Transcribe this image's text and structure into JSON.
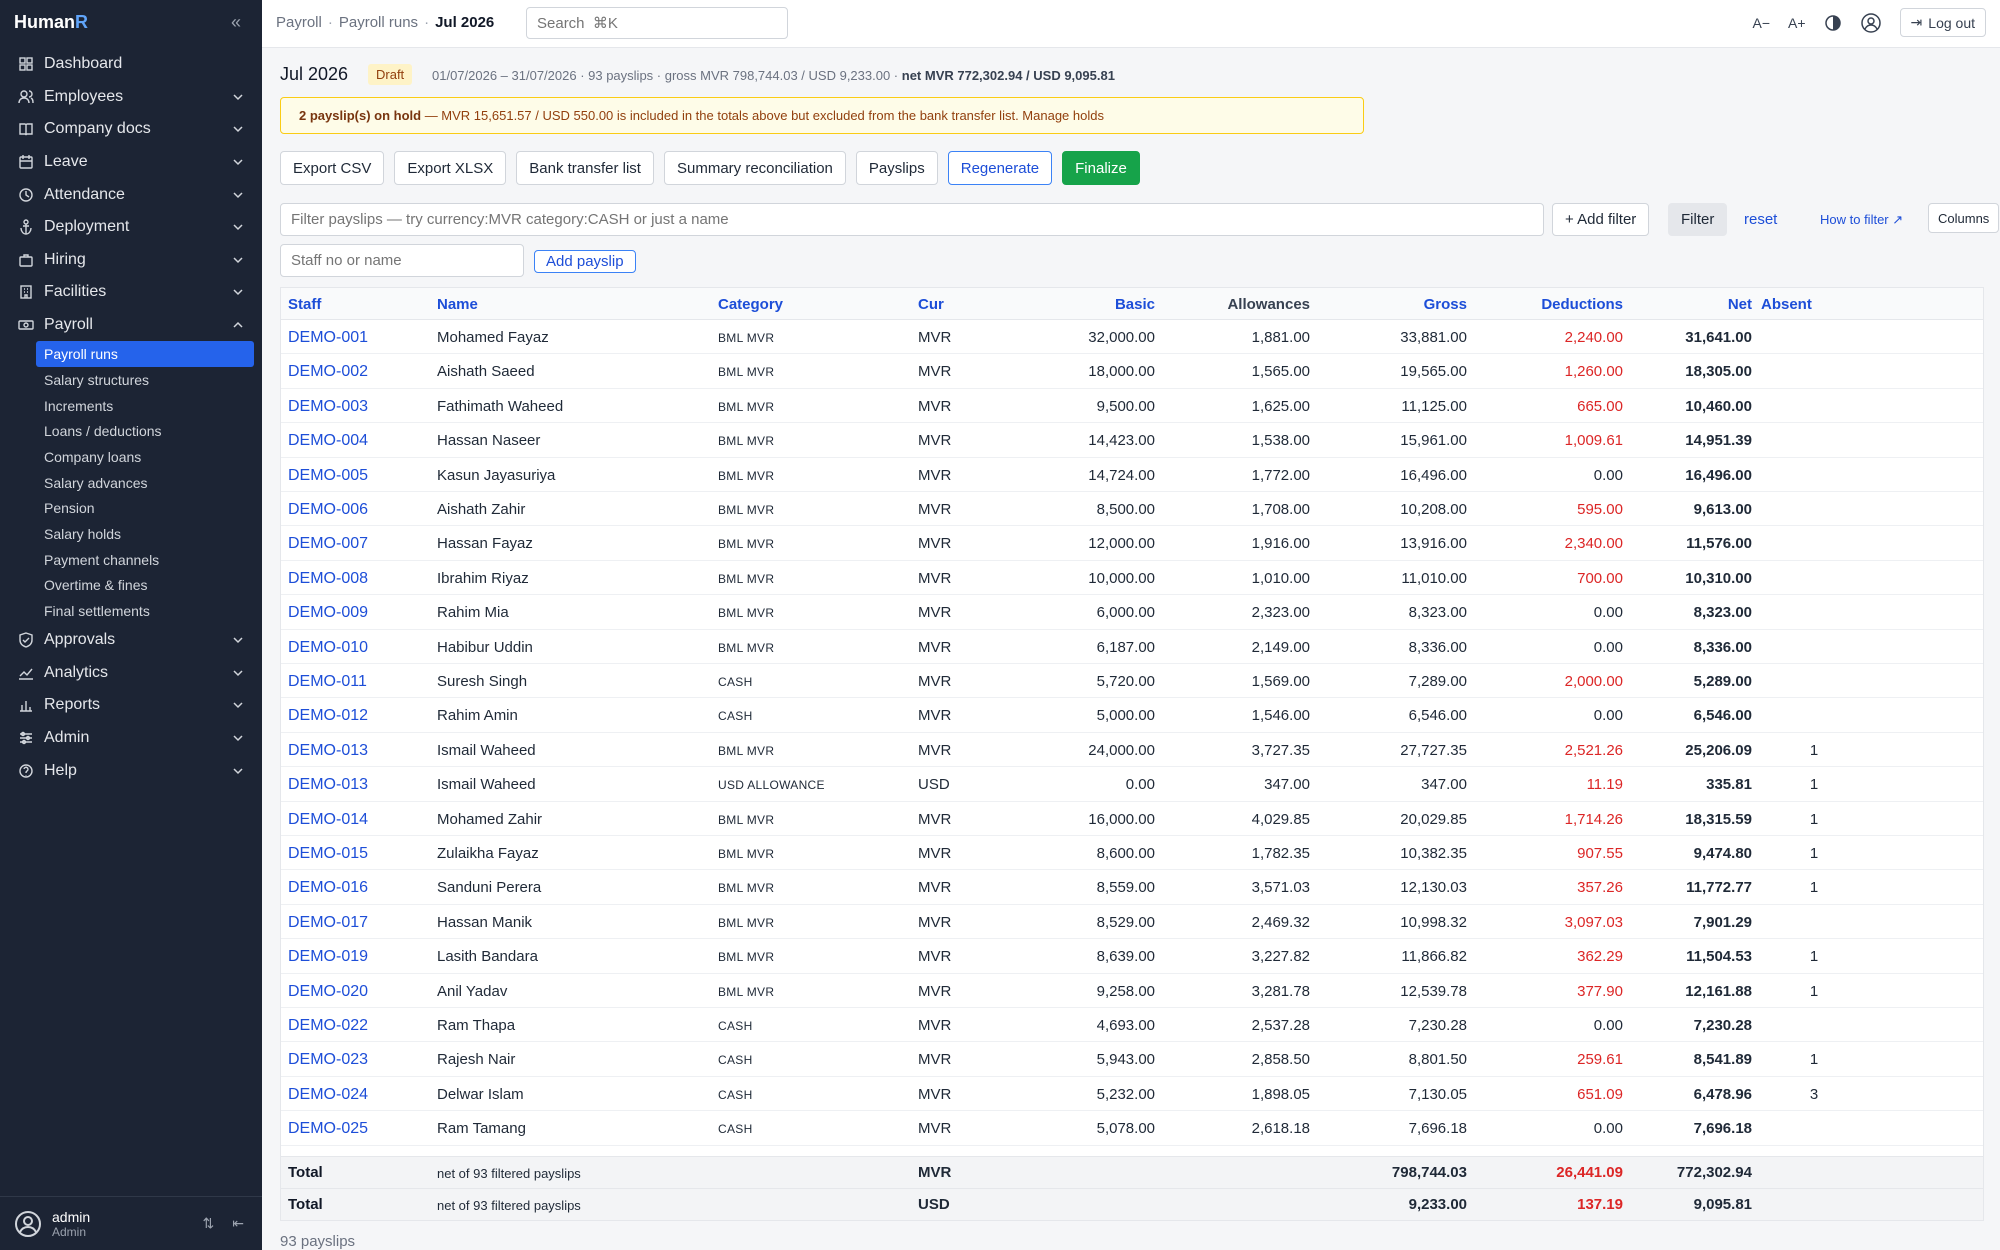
{
  "app": {
    "brand_main": "Human",
    "brand_accent": "R"
  },
  "sidebar": {
    "items": [
      {
        "label": "Dashboard",
        "icon": "grid-icon",
        "expandable": false
      },
      {
        "label": "Employees",
        "icon": "users-icon",
        "expandable": true
      },
      {
        "label": "Company docs",
        "icon": "book-icon",
        "expandable": true
      },
      {
        "label": "Leave",
        "icon": "calendar-icon",
        "expandable": true
      },
      {
        "label": "Attendance",
        "icon": "clock-icon",
        "expandable": true
      },
      {
        "label": "Deployment",
        "icon": "anchor-icon",
        "expandable": true
      },
      {
        "label": "Hiring",
        "icon": "briefcase-icon",
        "expandable": true
      },
      {
        "label": "Facilities",
        "icon": "building-icon",
        "expandable": true
      },
      {
        "label": "Payroll",
        "icon": "banknote-icon",
        "expandable": true,
        "expanded": true
      }
    ],
    "payroll_sub": [
      {
        "label": "Payroll runs",
        "active": true
      },
      {
        "label": "Salary structures"
      },
      {
        "label": "Increments"
      },
      {
        "label": "Loans / deductions"
      },
      {
        "label": "Company loans"
      },
      {
        "label": "Salary advances"
      },
      {
        "label": "Pension"
      },
      {
        "label": "Salary holds"
      },
      {
        "label": "Payment channels"
      },
      {
        "label": "Overtime & fines"
      },
      {
        "label": "Final settlements"
      }
    ],
    "items_after": [
      {
        "label": "Approvals",
        "icon": "shield-check-icon"
      },
      {
        "label": "Analytics",
        "icon": "line-chart-icon"
      },
      {
        "label": "Reports",
        "icon": "bar-chart-icon"
      },
      {
        "label": "Admin",
        "icon": "sliders-icon"
      },
      {
        "label": "Help",
        "icon": "help-circle-icon"
      }
    ],
    "user": {
      "name": "admin",
      "role": "Admin"
    }
  },
  "topbar": {
    "breadcrumb": [
      "Payroll",
      "Payroll runs",
      "Jul 2026"
    ],
    "search_placeholder": "Search  ⌘K",
    "font_smaller": "A−",
    "font_larger": "A+",
    "logout_label": "Log out"
  },
  "run": {
    "title": "Jul 2026",
    "status": "Draft",
    "meta": "01/07/2026 – 31/07/2026 · 93 payslips · gross MVR 798,744.03 / USD 9,233.00 · ",
    "meta_net": "net MVR 772,302.94 / USD 9,095.81",
    "hold_bold": "2 payslip(s) on hold",
    "hold_text": " — MVR 15,651.57 / USD 550.00 is included in the totals above but excluded from the bank transfer list. Manage holds"
  },
  "actions": {
    "export_csv": "Export CSV",
    "export_xlsx": "Export XLSX",
    "bank_transfer": "Bank transfer list",
    "summary": "Summary reconciliation",
    "payslips": "Payslips",
    "regenerate": "Regenerate",
    "finalize": "Finalize"
  },
  "filter": {
    "placeholder": "Filter payslips — try currency:MVR category:CASH or just a name",
    "add_filter": "+ Add filter",
    "filter": "Filter",
    "reset": "reset",
    "how_to": "How to filter ↗",
    "columns": "Columns"
  },
  "add": {
    "staff_placeholder": "Staff no or name",
    "add_payslip": "Add payslip"
  },
  "table": {
    "headers": {
      "staff": "Staff",
      "name": "Name",
      "category": "Category",
      "cur": "Cur",
      "basic": "Basic",
      "allowances": "Allowances",
      "gross": "Gross",
      "deductions": "Deductions",
      "net": "Net",
      "absent": "Absent"
    },
    "rows": [
      [
        "DEMO-001",
        "Mohamed Fayaz",
        "BML MVR",
        "MVR",
        "32,000.00",
        "1,881.00",
        "33,881.00",
        "2,240.00",
        "31,641.00",
        ""
      ],
      [
        "DEMO-002",
        "Aishath Saeed",
        "BML MVR",
        "MVR",
        "18,000.00",
        "1,565.00",
        "19,565.00",
        "1,260.00",
        "18,305.00",
        ""
      ],
      [
        "DEMO-003",
        "Fathimath Waheed",
        "BML MVR",
        "MVR",
        "9,500.00",
        "1,625.00",
        "11,125.00",
        "665.00",
        "10,460.00",
        ""
      ],
      [
        "DEMO-004",
        "Hassan Naseer",
        "BML MVR",
        "MVR",
        "14,423.00",
        "1,538.00",
        "15,961.00",
        "1,009.61",
        "14,951.39",
        ""
      ],
      [
        "DEMO-005",
        "Kasun Jayasuriya",
        "BML MVR",
        "MVR",
        "14,724.00",
        "1,772.00",
        "16,496.00",
        "0.00",
        "16,496.00",
        ""
      ],
      [
        "DEMO-006",
        "Aishath Zahir",
        "BML MVR",
        "MVR",
        "8,500.00",
        "1,708.00",
        "10,208.00",
        "595.00",
        "9,613.00",
        ""
      ],
      [
        "DEMO-007",
        "Hassan Fayaz",
        "BML MVR",
        "MVR",
        "12,000.00",
        "1,916.00",
        "13,916.00",
        "2,340.00",
        "11,576.00",
        ""
      ],
      [
        "DEMO-008",
        "Ibrahim Riyaz",
        "BML MVR",
        "MVR",
        "10,000.00",
        "1,010.00",
        "11,010.00",
        "700.00",
        "10,310.00",
        ""
      ],
      [
        "DEMO-009",
        "Rahim Mia",
        "BML MVR",
        "MVR",
        "6,000.00",
        "2,323.00",
        "8,323.00",
        "0.00",
        "8,323.00",
        ""
      ],
      [
        "DEMO-010",
        "Habibur Uddin",
        "BML MVR",
        "MVR",
        "6,187.00",
        "2,149.00",
        "8,336.00",
        "0.00",
        "8,336.00",
        ""
      ],
      [
        "DEMO-011",
        "Suresh Singh",
        "CASH",
        "MVR",
        "5,720.00",
        "1,569.00",
        "7,289.00",
        "2,000.00",
        "5,289.00",
        ""
      ],
      [
        "DEMO-012",
        "Rahim Amin",
        "CASH",
        "MVR",
        "5,000.00",
        "1,546.00",
        "6,546.00",
        "0.00",
        "6,546.00",
        ""
      ],
      [
        "DEMO-013",
        "Ismail Waheed",
        "BML MVR",
        "MVR",
        "24,000.00",
        "3,727.35",
        "27,727.35",
        "2,521.26",
        "25,206.09",
        "1"
      ],
      [
        "DEMO-013",
        "Ismail Waheed",
        "USD ALLOWANCE",
        "USD",
        "0.00",
        "347.00",
        "347.00",
        "11.19",
        "335.81",
        "1"
      ],
      [
        "DEMO-014",
        "Mohamed Zahir",
        "BML MVR",
        "MVR",
        "16,000.00",
        "4,029.85",
        "20,029.85",
        "1,714.26",
        "18,315.59",
        "1"
      ],
      [
        "DEMO-015",
        "Zulaikha Fayaz",
        "BML MVR",
        "MVR",
        "8,600.00",
        "1,782.35",
        "10,382.35",
        "907.55",
        "9,474.80",
        "1"
      ],
      [
        "DEMO-016",
        "Sanduni Perera",
        "BML MVR",
        "MVR",
        "8,559.00",
        "3,571.03",
        "12,130.03",
        "357.26",
        "11,772.77",
        "1"
      ],
      [
        "DEMO-017",
        "Hassan Manik",
        "BML MVR",
        "MVR",
        "8,529.00",
        "2,469.32",
        "10,998.32",
        "3,097.03",
        "7,901.29",
        ""
      ],
      [
        "DEMO-019",
        "Lasith Bandara",
        "BML MVR",
        "MVR",
        "8,639.00",
        "3,227.82",
        "11,866.82",
        "362.29",
        "11,504.53",
        "1"
      ],
      [
        "DEMO-020",
        "Anil Yadav",
        "BML MVR",
        "MVR",
        "9,258.00",
        "3,281.78",
        "12,539.78",
        "377.90",
        "12,161.88",
        "1"
      ],
      [
        "DEMO-022",
        "Ram Thapa",
        "CASH",
        "MVR",
        "4,693.00",
        "2,537.28",
        "7,230.28",
        "0.00",
        "7,230.28",
        ""
      ],
      [
        "DEMO-023",
        "Rajesh Nair",
        "CASH",
        "MVR",
        "5,943.00",
        "2,858.50",
        "8,801.50",
        "259.61",
        "8,541.89",
        "1"
      ],
      [
        "DEMO-024",
        "Delwar Islam",
        "CASH",
        "MVR",
        "5,232.00",
        "1,898.05",
        "7,130.05",
        "651.09",
        "6,478.96",
        "3"
      ],
      [
        "DEMO-025",
        "Ram Tamang",
        "CASH",
        "MVR",
        "5,078.00",
        "2,618.18",
        "7,696.18",
        "0.00",
        "7,696.18",
        ""
      ]
    ],
    "totals": [
      {
        "label": "Total",
        "note": "net of 93 filtered payslips",
        "cur": "MVR",
        "gross": "798,744.03",
        "ded": "26,441.09",
        "net": "772,302.94"
      },
      {
        "label": "Total",
        "note": "net of 93 filtered payslips",
        "cur": "USD",
        "gross": "9,233.00",
        "ded": "137.19",
        "net": "9,095.81"
      }
    ]
  },
  "footer": {
    "count": "93 payslips"
  },
  "colors": {
    "sidebar_bg": "#1c2434",
    "accent": "#2563eb",
    "finalize": "#16a34a",
    "deduction_red": "#dc2626"
  }
}
